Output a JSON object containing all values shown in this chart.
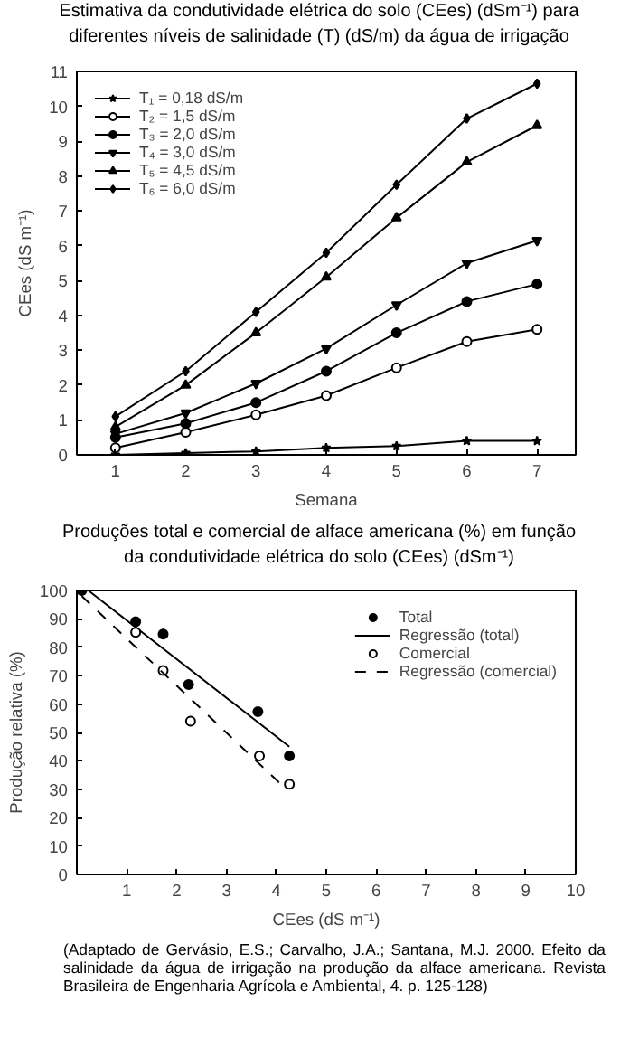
{
  "chart_data": [
    {
      "type": "line",
      "title": "Estimativa da condutividade elétrica do solo (CEes) (dSm⁻¹) para\ndiferentes níveis de salinidade (T) (dS/m) da água de irrigação",
      "xlabel": "Semana",
      "ylabel": "CEes (dS m⁻¹)",
      "x": [
        1,
        2,
        3,
        4,
        5,
        6,
        7
      ],
      "xlim": [
        0.45,
        7.55
      ],
      "xticks": [
        1,
        2,
        3,
        4,
        5,
        6,
        7
      ],
      "ylim": [
        0,
        11
      ],
      "yticks": [
        0,
        1,
        2,
        3,
        4,
        5,
        6,
        7,
        8,
        9,
        10,
        11
      ],
      "grid": false,
      "legend": "top left",
      "series": [
        {
          "name": "T₁ = 0,18 dS/m",
          "color": "#000000",
          "marker": "star",
          "values": [
            0,
            0.05,
            0.1,
            0.2,
            0.25,
            0.4,
            0.4
          ]
        },
        {
          "name": "T₂ = 1,5 dS/m",
          "color": "#000000",
          "marker": "circle_open",
          "values": [
            0.2,
            0.65,
            1.15,
            1.7,
            2.5,
            3.25,
            3.6
          ]
        },
        {
          "name": "T₃ = 2,0 dS/m",
          "color": "#000000",
          "marker": "circle",
          "values": [
            0.5,
            0.9,
            1.5,
            2.4,
            3.5,
            4.4,
            4.9
          ]
        },
        {
          "name": "T₄ = 3,0 dS/m",
          "color": "#000000",
          "marker": "triangle_down",
          "values": [
            0.6,
            1.2,
            2.05,
            3.05,
            4.3,
            5.5,
            6.15
          ]
        },
        {
          "name": "T₅ = 4,5 dS/m",
          "color": "#000000",
          "marker": "triangle",
          "values": [
            0.8,
            2.0,
            3.5,
            5.1,
            6.8,
            8.4,
            9.45
          ]
        },
        {
          "name": "T₆ = 6,0 dS/m",
          "color": "#000000",
          "marker": "diamond",
          "values": [
            1.1,
            2.4,
            4.1,
            5.8,
            7.75,
            9.65,
            10.65
          ]
        }
      ]
    },
    {
      "type": "scatter",
      "title": "Produções total e comercial de alface americana (%) em função\nda condutividade elétrica do solo (CEes) (dSm⁻¹)",
      "xlabel": "CEes (dS m⁻¹)",
      "ylabel": "Produção relativa (%)",
      "xlim": [
        0,
        10
      ],
      "xticks": [
        1,
        2,
        3,
        4,
        5,
        6,
        7,
        8,
        9,
        10
      ],
      "ylim": [
        0,
        100
      ],
      "yticks": [
        0,
        10,
        20,
        30,
        40,
        50,
        60,
        70,
        80,
        90,
        100
      ],
      "grid": false,
      "legend": "top right",
      "series": [
        {
          "name": "Total",
          "type": "scatter",
          "color": "#000000",
          "marker": "circle",
          "x": [
            0.1,
            1.18,
            1.73,
            2.24,
            3.63,
            4.26
          ],
          "values": [
            100,
            89,
            84.6,
            66.9,
            57.3,
            41.7
          ]
        },
        {
          "name": "Regressão (total)",
          "type": "line",
          "color": "#000000",
          "marker": "none",
          "line_style": "solid",
          "x": [
            0.23,
            4.26
          ],
          "values": [
            100,
            45
          ]
        },
        {
          "name": "Comercial",
          "type": "scatter",
          "color": "#000000",
          "marker": "circle_open",
          "x": [
            1.18,
            1.73,
            2.28,
            3.66,
            4.26
          ],
          "values": [
            85.3,
            71.8,
            54,
            41.7,
            31.8
          ]
        },
        {
          "name": "Regressão (comercial)",
          "type": "line",
          "color": "#000000",
          "marker": "none",
          "line_style": "dashed",
          "x": [
            0.1,
            4.2
          ],
          "values": [
            98,
            30
          ]
        }
      ],
      "annotations": [
        "(Adaptado de Gervásio, E.S.; Carvalho, J.A.; Santana, M.J. 2000. Efeito da salinidade da água de irrigação na produção da alface americana. Revista Brasileira de Engenharia Agrícola e Ambiental, 4. p. 125-128)"
      ]
    }
  ]
}
